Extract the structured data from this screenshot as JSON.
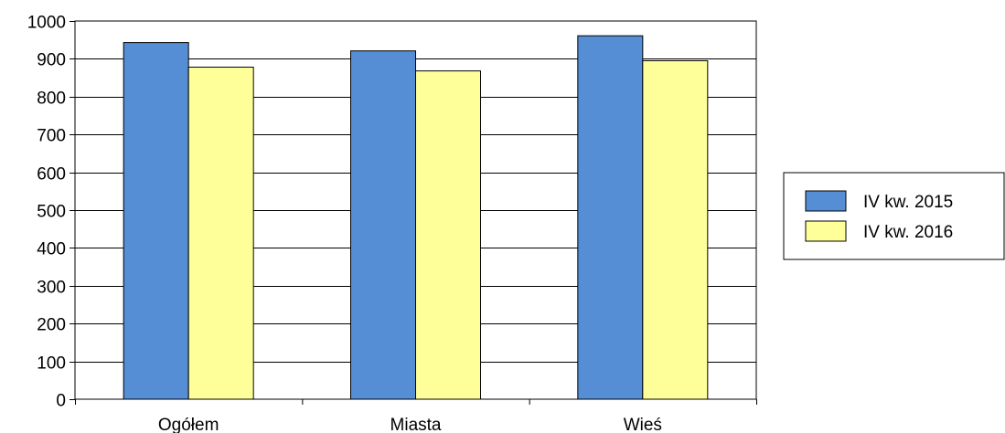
{
  "chart_data": {
    "type": "bar",
    "title": "",
    "xlabel": "",
    "ylabel": "",
    "categories": [
      "Ogółem",
      "Miasta",
      "Wieś"
    ],
    "series": [
      {
        "name": "IV kw. 2015",
        "values": [
          943,
          921,
          961
        ],
        "color": "#558ED5"
      },
      {
        "name": "IV kw. 2016",
        "values": [
          878,
          868,
          895
        ],
        "color": "#FFFF99"
      }
    ],
    "ylim": [
      0,
      1000
    ],
    "yticks": [
      0,
      100,
      200,
      300,
      400,
      500,
      600,
      700,
      800,
      900,
      1000
    ],
    "grid": true,
    "legend": "right"
  }
}
